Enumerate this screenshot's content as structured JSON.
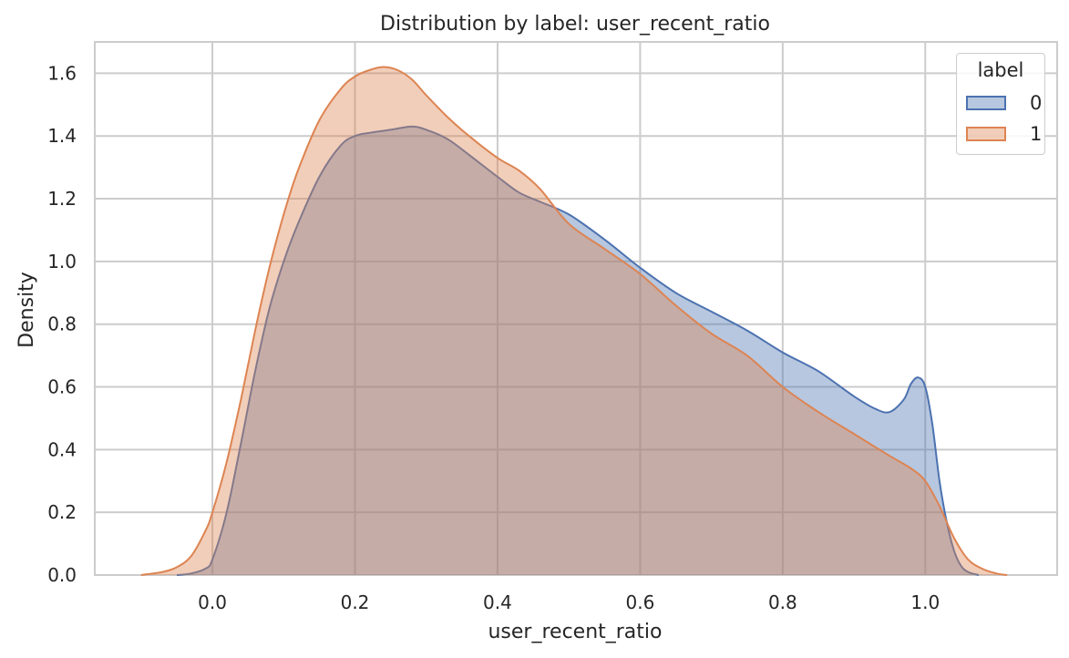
{
  "chart_data": {
    "type": "area",
    "title": "Distribution by label: user_recent_ratio",
    "xlabel": "user_recent_ratio",
    "ylabel": "Density",
    "xlim": [
      -0.165,
      1.185
    ],
    "ylim": [
      0,
      1.7
    ],
    "xticks": [
      0.0,
      0.2,
      0.4,
      0.6,
      0.8,
      1.0
    ],
    "xtick_labels": [
      "0.0",
      "0.2",
      "0.4",
      "0.6",
      "0.8",
      "1.0"
    ],
    "yticks": [
      0.0,
      0.2,
      0.4,
      0.6,
      0.8,
      1.0,
      1.2,
      1.4,
      1.6
    ],
    "ytick_labels": [
      "0.0",
      "0.2",
      "0.4",
      "0.6",
      "0.8",
      "1.0",
      "1.2",
      "1.4",
      "1.6"
    ],
    "grid": true,
    "legend": {
      "title": "label",
      "placement": "top-right"
    },
    "series": [
      {
        "name": "0",
        "color": "#4c72b0",
        "x": [
          -0.05,
          -0.03,
          -0.01,
          0.0,
          0.02,
          0.04,
          0.06,
          0.08,
          0.1,
          0.12,
          0.15,
          0.18,
          0.2,
          0.22,
          0.25,
          0.28,
          0.3,
          0.33,
          0.36,
          0.4,
          0.43,
          0.46,
          0.5,
          0.55,
          0.6,
          0.65,
          0.7,
          0.75,
          0.8,
          0.85,
          0.9,
          0.93,
          0.95,
          0.97,
          0.98,
          0.99,
          1.0,
          1.01,
          1.02,
          1.03,
          1.04,
          1.05,
          1.06,
          1.075
        ],
        "y": [
          0.0,
          0.005,
          0.02,
          0.05,
          0.2,
          0.42,
          0.65,
          0.85,
          1.0,
          1.12,
          1.27,
          1.37,
          1.4,
          1.41,
          1.42,
          1.43,
          1.42,
          1.39,
          1.34,
          1.27,
          1.22,
          1.19,
          1.15,
          1.07,
          0.98,
          0.9,
          0.84,
          0.78,
          0.71,
          0.65,
          0.57,
          0.53,
          0.52,
          0.56,
          0.61,
          0.63,
          0.6,
          0.48,
          0.3,
          0.17,
          0.08,
          0.03,
          0.01,
          0.0
        ]
      },
      {
        "name": "1",
        "color": "#dd8452",
        "x": [
          -0.1,
          -0.07,
          -0.05,
          -0.03,
          -0.01,
          0.0,
          0.02,
          0.04,
          0.06,
          0.08,
          0.1,
          0.12,
          0.15,
          0.18,
          0.2,
          0.22,
          0.24,
          0.26,
          0.28,
          0.3,
          0.33,
          0.36,
          0.4,
          0.43,
          0.46,
          0.5,
          0.55,
          0.6,
          0.65,
          0.7,
          0.75,
          0.8,
          0.85,
          0.9,
          0.95,
          0.98,
          1.0,
          1.02,
          1.04,
          1.06,
          1.08,
          1.1,
          1.115
        ],
        "y": [
          0.0,
          0.01,
          0.025,
          0.06,
          0.14,
          0.2,
          0.36,
          0.56,
          0.78,
          0.98,
          1.15,
          1.29,
          1.45,
          1.55,
          1.59,
          1.61,
          1.62,
          1.61,
          1.58,
          1.53,
          1.46,
          1.4,
          1.33,
          1.29,
          1.23,
          1.12,
          1.04,
          0.96,
          0.86,
          0.77,
          0.7,
          0.6,
          0.52,
          0.45,
          0.38,
          0.34,
          0.3,
          0.22,
          0.12,
          0.05,
          0.02,
          0.005,
          0.0
        ]
      }
    ]
  }
}
